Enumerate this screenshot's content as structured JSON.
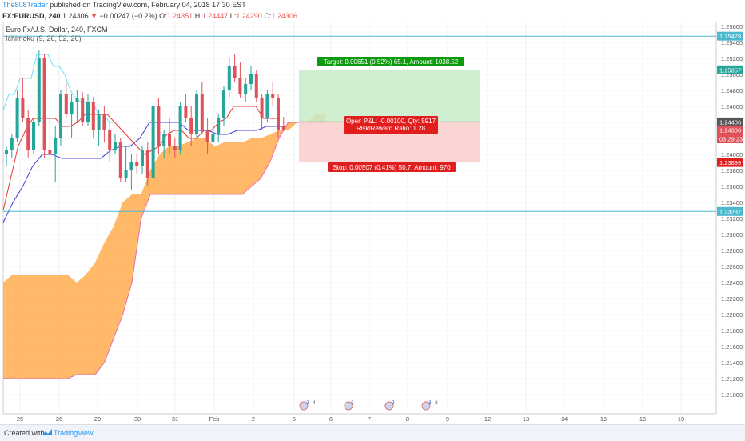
{
  "header": {
    "author": "The808Trader",
    "published": "published on TradingView.com, February 04, 2018 17:30 EST",
    "symbol": "FX:EURUSD, 240",
    "last": "1.24306",
    "arrow": "▼",
    "change": "−0.00247 (−0.2%)",
    "o_label": "O:",
    "o": "1.24351",
    "h_label": "H:",
    "h": "1.24447",
    "l_label": "L:",
    "l": "1.24290",
    "c_label": "C:",
    "c": "1.24306"
  },
  "legend": {
    "title": "Euro Fx/U.S. Dollar, 240, FXCM",
    "indicator": "Ichimoku (9, 26, 52, 26)"
  },
  "footer": {
    "created": "Created with",
    "brand": "TradingView"
  },
  "colors": {
    "up": "#26a69a",
    "down": "#e0525a",
    "cloud": "#ffad4f",
    "cloud_edge": "#e66bb4",
    "conversion": "#6ee3f5",
    "base": "#e53935",
    "lagging": "#3f3fd6",
    "target_zone": "#c8ecc8",
    "stop_zone": "#f9c5c5",
    "target_label": "#0d9a0d",
    "stop_label": "#e01e1e",
    "hline": "#4cb8cf"
  },
  "chart_data": {
    "type": "candlestick",
    "title": "Euro Fx/U.S. Dollar, 240, FXCM",
    "ylim": [
      1.2078,
      1.2565
    ],
    "y_ticks": [
      "1.25600",
      "1.25400",
      "1.25200",
      "1.25000",
      "1.24800",
      "1.24600",
      "1.24400",
      "1.24200",
      "1.24000",
      "1.23800",
      "1.23600",
      "1.23400",
      "1.23200",
      "1.23000",
      "1.22800",
      "1.22600",
      "1.22400",
      "1.22200",
      "1.22000",
      "1.21800",
      "1.21600",
      "1.21400",
      "1.21200",
      "1.21000"
    ],
    "x_tick_labels": [
      "25",
      "26",
      "29",
      "30",
      "31",
      "Feb",
      "2",
      "5",
      "6",
      "7",
      "8",
      "9",
      "12",
      "13",
      "14",
      "15",
      "16",
      "19"
    ],
    "candles_ohlc": [
      [
        1.24,
        1.241,
        1.2385,
        1.2405
      ],
      [
        1.2405,
        1.2425,
        1.2395,
        1.242
      ],
      [
        1.242,
        1.248,
        1.2415,
        1.247
      ],
      [
        1.247,
        1.2495,
        1.244,
        1.2445
      ],
      [
        1.2445,
        1.2455,
        1.2395,
        1.2405
      ],
      [
        1.2405,
        1.2445,
        1.24,
        1.244
      ],
      [
        1.244,
        1.253,
        1.2435,
        1.252
      ],
      [
        1.252,
        1.2525,
        1.2395,
        1.2405
      ],
      [
        1.2405,
        1.245,
        1.239,
        1.24
      ],
      [
        1.24,
        1.2435,
        1.2365,
        1.242
      ],
      [
        1.242,
        1.248,
        1.241,
        1.2475
      ],
      [
        1.2475,
        1.249,
        1.2445,
        1.245
      ],
      [
        1.245,
        1.2475,
        1.242,
        1.2465
      ],
      [
        1.2465,
        1.248,
        1.244,
        1.247
      ],
      [
        1.247,
        1.2478,
        1.2435,
        1.244
      ],
      [
        1.244,
        1.2475,
        1.2435,
        1.2465
      ],
      [
        1.2465,
        1.2472,
        1.242,
        1.243
      ],
      [
        1.243,
        1.2455,
        1.241,
        1.245
      ],
      [
        1.245,
        1.246,
        1.2415,
        1.243
      ],
      [
        1.243,
        1.244,
        1.239,
        1.2405
      ],
      [
        1.2405,
        1.2425,
        1.24,
        1.2415
      ],
      [
        1.2415,
        1.242,
        1.2365,
        1.237
      ],
      [
        1.237,
        1.241,
        1.2365,
        1.238
      ],
      [
        1.238,
        1.24,
        1.2355,
        1.239
      ],
      [
        1.239,
        1.24,
        1.2375,
        1.2385
      ],
      [
        1.2385,
        1.241,
        1.2375,
        1.2405
      ],
      [
        1.2405,
        1.2415,
        1.236,
        1.237
      ],
      [
        1.237,
        1.2465,
        1.236,
        1.246
      ],
      [
        1.246,
        1.247,
        1.24,
        1.241
      ],
      [
        1.241,
        1.243,
        1.2395,
        1.2425
      ],
      [
        1.2425,
        1.2445,
        1.24,
        1.241
      ],
      [
        1.241,
        1.242,
        1.2395,
        1.2405
      ],
      [
        1.2405,
        1.2465,
        1.24,
        1.246
      ],
      [
        1.246,
        1.2475,
        1.244,
        1.2445
      ],
      [
        1.2445,
        1.246,
        1.241,
        1.2425
      ],
      [
        1.2425,
        1.248,
        1.242,
        1.2475
      ],
      [
        1.2475,
        1.249,
        1.2425,
        1.243
      ],
      [
        1.243,
        1.2445,
        1.24,
        1.2415
      ],
      [
        1.2415,
        1.244,
        1.241,
        1.2425
      ],
      [
        1.2425,
        1.245,
        1.2415,
        1.2445
      ],
      [
        1.2445,
        1.2485,
        1.2435,
        1.248
      ],
      [
        1.248,
        1.252,
        1.247,
        1.251
      ],
      [
        1.251,
        1.2525,
        1.249,
        1.2495
      ],
      [
        1.2495,
        1.2515,
        1.247,
        1.2475
      ],
      [
        1.2475,
        1.2495,
        1.2465,
        1.2488
      ],
      [
        1.2488,
        1.251,
        1.248,
        1.25
      ],
      [
        1.25,
        1.2505,
        1.2465,
        1.247
      ],
      [
        1.247,
        1.2475,
        1.243,
        1.2445
      ],
      [
        1.2445,
        1.248,
        1.244,
        1.2475
      ],
      [
        1.2475,
        1.249,
        1.246,
        1.247
      ],
      [
        1.247,
        1.2475,
        1.242,
        1.243
      ],
      [
        1.2435,
        1.2447,
        1.2429,
        1.2431
      ]
    ],
    "series": [
      {
        "name": "Conversion Line",
        "values": [
          1.2455,
          1.2475,
          1.2475,
          1.2495,
          1.2495,
          1.2495,
          1.2525,
          1.2525,
          1.2525,
          1.251,
          1.251,
          1.25,
          1.248,
          1.247,
          1.2465,
          1.2465,
          1.2465,
          1.245,
          1.245,
          1.244,
          1.244
        ]
      },
      {
        "name": "Base Line",
        "values": [
          1.233,
          1.237,
          1.241,
          1.243,
          1.2445,
          1.2445,
          1.2445,
          1.2445,
          1.2435,
          1.2435,
          1.244,
          1.245,
          1.245,
          1.245,
          1.245,
          1.244,
          1.243,
          1.242,
          1.241,
          1.24,
          1.2405,
          1.241,
          1.2425,
          1.243,
          1.243,
          1.242,
          1.242,
          1.243,
          1.243,
          1.244,
          1.2445,
          1.246,
          1.246,
          1.246,
          1.246,
          1.2445,
          1.2445,
          1.2445
        ]
      },
      {
        "name": "Lagging Span",
        "values": [
          1.2315,
          1.234,
          1.236,
          1.2385,
          1.24,
          1.24,
          1.2395,
          1.2395,
          1.2395,
          1.2395,
          1.2395,
          1.2405,
          1.241,
          1.241,
          1.242,
          1.244,
          1.244,
          1.244,
          1.244,
          1.243,
          1.243,
          1.243,
          1.2425,
          1.2425,
          1.243,
          1.243,
          1.243,
          1.2435,
          1.2435,
          1.2435
        ]
      }
    ],
    "cloud_upper": [
      1.224,
      1.225,
      1.225,
      1.225,
      1.225,
      1.225,
      1.225,
      1.225,
      1.224,
      1.225,
      1.2265,
      1.229,
      1.231,
      1.234,
      1.235,
      1.235,
      1.238,
      1.24,
      1.241,
      1.241,
      1.2415,
      1.242,
      1.242,
      1.241,
      1.2415,
      1.2415,
      1.2415,
      1.242,
      1.242,
      1.2425,
      1.243,
      1.243,
      1.244,
      1.244,
      1.245,
      1.245
    ],
    "cloud_lower": [
      1.212,
      1.212,
      1.212,
      1.212,
      1.212,
      1.212,
      1.212,
      1.212,
      1.2125,
      1.2125,
      1.2125,
      1.214,
      1.217,
      1.22,
      1.224,
      1.232,
      1.235,
      1.235,
      1.235,
      1.235,
      1.235,
      1.235,
      1.235,
      1.235,
      1.235,
      1.235,
      1.235,
      1.236,
      1.237,
      1.239,
      1.242,
      1.244,
      1.244,
      1.244,
      1.244,
      1.244
    ],
    "horizontal_lines": [
      1.25478,
      1.23287
    ],
    "price_markers": [
      {
        "label": "1.25478",
        "color": "#4cb8cf"
      },
      {
        "label": "1.25057",
        "color": "#26a69a"
      },
      {
        "label": "1.24406",
        "color": "#555555"
      },
      {
        "label": "1.24306",
        "color": "#e0525a"
      },
      {
        "label": "03:29:23",
        "color": "#e0525a"
      },
      {
        "label": "1.23899",
        "color": "#e01e1e"
      },
      {
        "label": "1.23287",
        "color": "#4cb8cf"
      }
    ],
    "position": {
      "entry": 1.24406,
      "target": 1.25057,
      "stop": 1.23899,
      "target_label": "Target: 0.00651 (0.52%) 65.1, Amount: 1038.52",
      "stop_label": "Stop: 0.00507 (0.41%) 50.7, Amount: 970",
      "pnl_label": "Open P&L: -0.00100, Qty: 5917",
      "rr_label": "Risk/Reward Ratio: 1.28"
    },
    "events": [
      {
        "label": "2",
        "extra": "4"
      },
      {
        "label": "2",
        "extra": ""
      },
      {
        "label": "2",
        "extra": ""
      },
      {
        "label": "3",
        "extra": "2"
      }
    ]
  }
}
